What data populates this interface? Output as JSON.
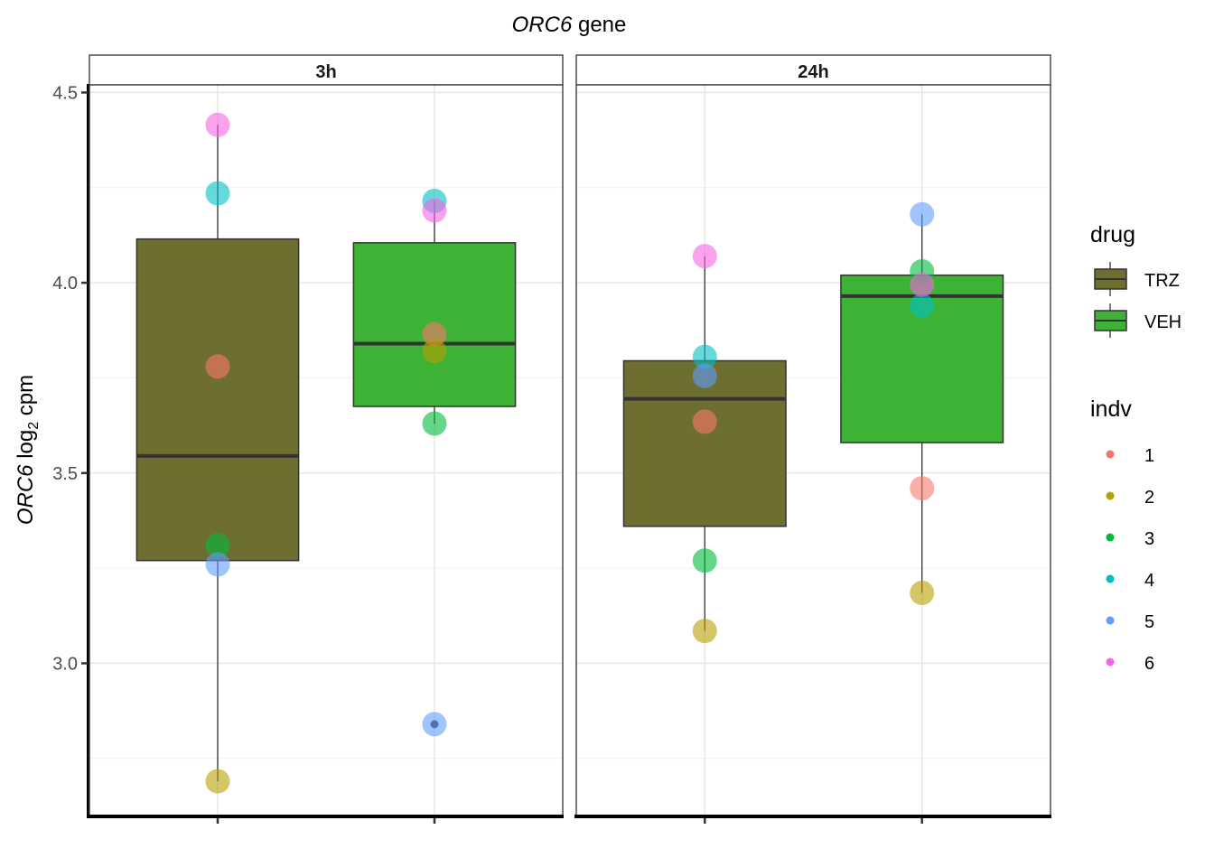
{
  "chart_data": {
    "type": "box",
    "title_italic": "ORC6",
    "title_rest": " gene",
    "ylabel_italic": "ORC6",
    "ylabel_log": " log",
    "ylabel_sub": "2",
    "ylabel_rest": " cpm",
    "ylim": [
      2.6,
      4.52
    ],
    "yticks": [
      3.0,
      3.5,
      4.0,
      4.5
    ],
    "ytick_labels": [
      "3.0",
      "3.5",
      "4.0",
      "4.5"
    ],
    "drug_colors": {
      "TRZ": "#6e6e31",
      "VEH": "#3db335"
    },
    "indv_colors": {
      "1": "#f8766d",
      "2": "#b79f00",
      "3": "#00ba38",
      "4": "#00bfc4",
      "5": "#619cff",
      "6": "#f564e3"
    },
    "panels": [
      {
        "label": "3h",
        "boxes": [
          {
            "drug": "TRZ",
            "whisker_low": 2.69,
            "q1": 3.27,
            "median": 3.545,
            "q3": 4.115,
            "whisker_high": 4.415,
            "points": [
              {
                "indv": "1",
                "y": 3.78
              },
              {
                "indv": "2",
                "y": 2.69
              },
              {
                "indv": "3",
                "y": 3.31
              },
              {
                "indv": "4",
                "y": 4.235
              },
              {
                "indv": "5",
                "y": 3.26
              },
              {
                "indv": "6",
                "y": 4.415
              }
            ],
            "outliers": []
          },
          {
            "drug": "VEH",
            "whisker_low": 3.63,
            "q1": 3.675,
            "median": 3.84,
            "q3": 4.105,
            "whisker_high": 4.215,
            "points": [
              {
                "indv": "1",
                "y": 3.865
              },
              {
                "indv": "2",
                "y": 3.82
              },
              {
                "indv": "3",
                "y": 3.63
              },
              {
                "indv": "4",
                "y": 4.215
              },
              {
                "indv": "5",
                "y": 2.84
              },
              {
                "indv": "6",
                "y": 4.19
              }
            ],
            "outliers": [
              2.84
            ]
          }
        ]
      },
      {
        "label": "24h",
        "boxes": [
          {
            "drug": "TRZ",
            "whisker_low": 3.085,
            "q1": 3.36,
            "median": 3.695,
            "q3": 3.795,
            "whisker_high": 4.07,
            "points": [
              {
                "indv": "1",
                "y": 3.635
              },
              {
                "indv": "2",
                "y": 3.085
              },
              {
                "indv": "3",
                "y": 3.27
              },
              {
                "indv": "4",
                "y": 3.805
              },
              {
                "indv": "5",
                "y": 3.755
              },
              {
                "indv": "6",
                "y": 4.07
              }
            ],
            "outliers": []
          },
          {
            "drug": "VEH",
            "whisker_low": 3.185,
            "q1": 3.58,
            "median": 3.965,
            "q3": 4.02,
            "whisker_high": 4.18,
            "points": [
              {
                "indv": "1",
                "y": 3.46
              },
              {
                "indv": "2",
                "y": 3.185
              },
              {
                "indv": "3",
                "y": 4.03
              },
              {
                "indv": "4",
                "y": 3.94
              },
              {
                "indv": "5",
                "y": 4.18
              },
              {
                "indv": "6",
                "y": 3.995
              }
            ],
            "outliers": []
          }
        ]
      }
    ],
    "legend": {
      "position": "right",
      "drug_title": "drug",
      "drug_items": [
        "TRZ",
        "VEH"
      ],
      "indv_title": "indv",
      "indv_items": [
        "1",
        "2",
        "3",
        "4",
        "5",
        "6"
      ]
    },
    "grid": true
  }
}
